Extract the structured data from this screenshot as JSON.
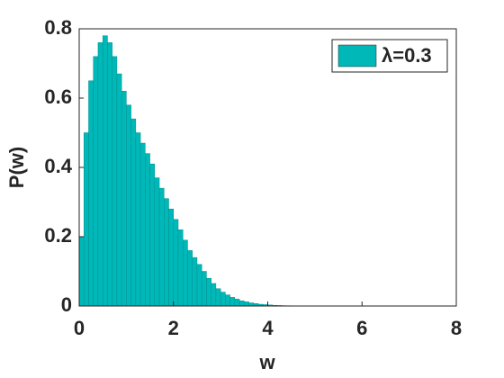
{
  "chart_data": {
    "type": "histogram",
    "x_label": "w",
    "y_label": "P(w)",
    "bins": [
      0,
      0.1,
      0.2,
      0.3,
      0.4,
      0.5,
      0.6,
      0.7,
      0.8,
      0.9,
      1.0,
      1.1,
      1.2,
      1.3,
      1.4,
      1.5,
      1.6,
      1.7,
      1.8,
      1.9,
      2.0,
      2.1,
      2.2,
      2.3,
      2.4,
      2.5,
      2.6,
      2.7,
      2.8,
      2.9,
      3.0,
      3.1,
      3.2,
      3.3,
      3.4,
      3.5,
      3.6,
      3.7,
      3.8,
      3.9,
      4.0,
      4.1,
      4.2,
      4.3,
      4.4,
      4.5,
      4.6,
      4.7,
      4.8,
      4.9,
      5.0
    ],
    "series": [
      {
        "name": "λ=0.3",
        "color": "#00b8b8",
        "values": [
          0.2,
          0.5,
          0.65,
          0.72,
          0.76,
          0.78,
          0.76,
          0.72,
          0.67,
          0.62,
          0.58,
          0.54,
          0.5,
          0.47,
          0.44,
          0.41,
          0.37,
          0.34,
          0.31,
          0.28,
          0.25,
          0.22,
          0.19,
          0.16,
          0.14,
          0.12,
          0.1,
          0.08,
          0.065,
          0.05,
          0.04,
          0.032,
          0.025,
          0.02,
          0.015,
          0.012,
          0.009,
          0.007,
          0.005,
          0.004,
          0.003,
          0.002,
          0.0015,
          0.001,
          0.0008,
          0.0006,
          0.0004,
          0.0003,
          0.0002,
          0.0001
        ]
      }
    ],
    "xlim": [
      0,
      8
    ],
    "xticks": [
      0,
      2,
      4,
      6,
      8
    ],
    "ylim": [
      0,
      0.8
    ],
    "yticks": [
      0,
      0.2,
      0.4,
      0.6,
      0.8
    ],
    "grid": false,
    "legend": "upper right"
  }
}
